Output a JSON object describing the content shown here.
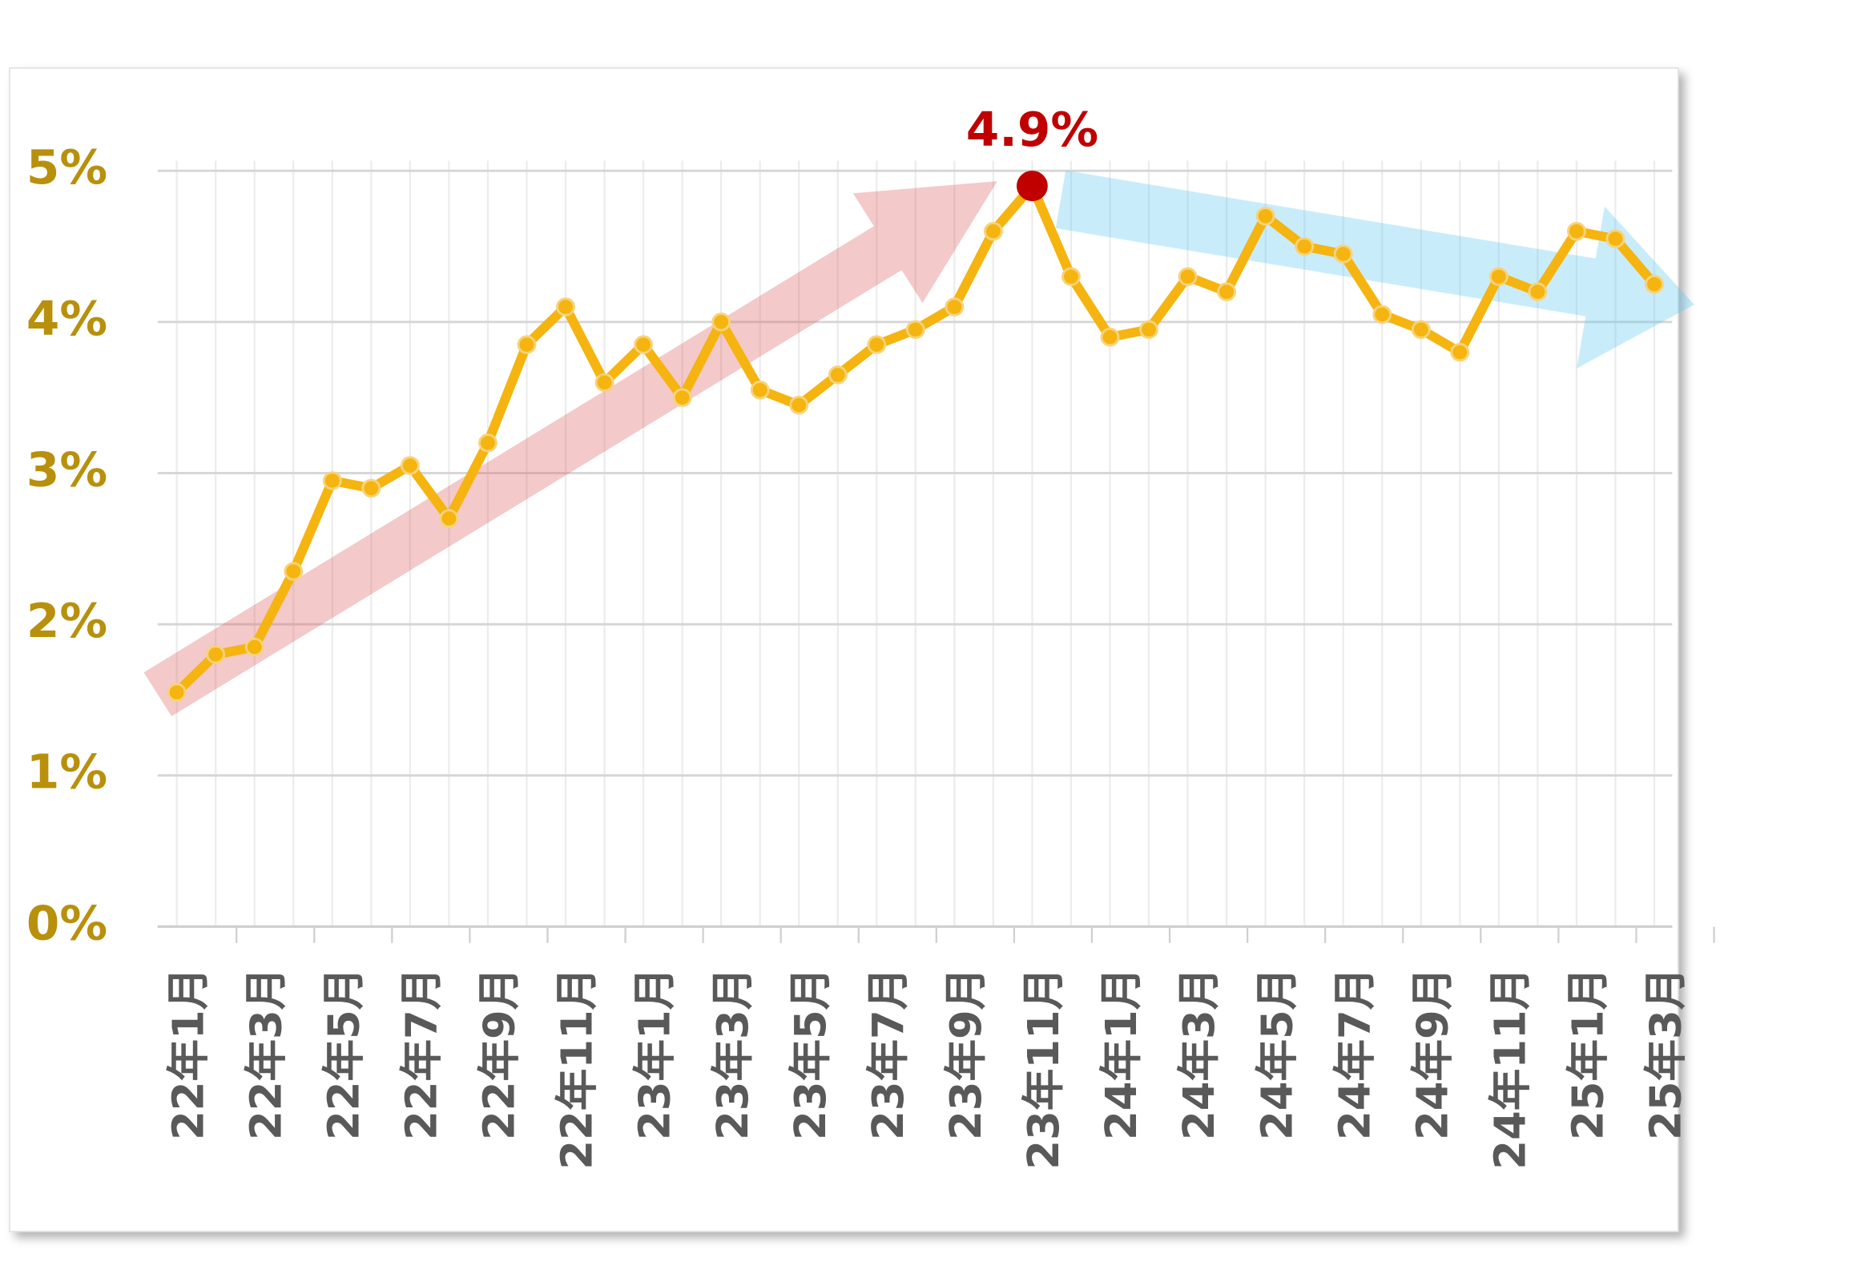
{
  "chart_data": {
    "type": "line",
    "categories": [
      "22年1月",
      null,
      "22年3月",
      null,
      "22年5月",
      null,
      "22年7月",
      null,
      "22年9月",
      null,
      "22年11月",
      null,
      "23年1月",
      null,
      "23年3月",
      null,
      "23年5月",
      null,
      "23年7月",
      null,
      "23年9月",
      null,
      "23年11月",
      null,
      "24年1月",
      null,
      "24年3月",
      null,
      "24年5月",
      null,
      "24年7月",
      null,
      "24年9月",
      null,
      "24年11月",
      null,
      "25年1月",
      null,
      "25年3月"
    ],
    "series": [
      {
        "color": "#f5b40f",
        "values": [
          1.55,
          1.8,
          1.85,
          2.35,
          2.95,
          2.9,
          3.05,
          2.7,
          3.2,
          3.85,
          4.1,
          3.6,
          3.85,
          3.5,
          4.0,
          3.55,
          3.45,
          3.65,
          3.85,
          3.95,
          4.1,
          4.6,
          4.9,
          4.3,
          3.9,
          3.95,
          4.3,
          4.2,
          4.7,
          4.5,
          4.45,
          4.05,
          3.95,
          3.8,
          4.3,
          4.2,
          4.6,
          4.55,
          4.25
        ],
        "value_labels": [
          null,
          null,
          null,
          null,
          null,
          null,
          null,
          null,
          null,
          null,
          null,
          null,
          null,
          null,
          null,
          null,
          null,
          null,
          null,
          null,
          null,
          null,
          "4.9%",
          null,
          null,
          null,
          null,
          null,
          null,
          null,
          null,
          null,
          null,
          null,
          null,
          null,
          null,
          null,
          null
        ],
        "highlight_color": "#c00000"
      }
    ],
    "ylim": [
      0,
      5.3
    ],
    "yticks": [
      {
        "value": 0,
        "label": "0%"
      },
      {
        "value": 1,
        "label": "1%"
      },
      {
        "value": 2,
        "label": "2%"
      },
      {
        "value": 3,
        "label": "3%"
      },
      {
        "value": 4,
        "label": "4%"
      },
      {
        "value": 5,
        "label": "5%"
      }
    ],
    "grid": true
  }
}
